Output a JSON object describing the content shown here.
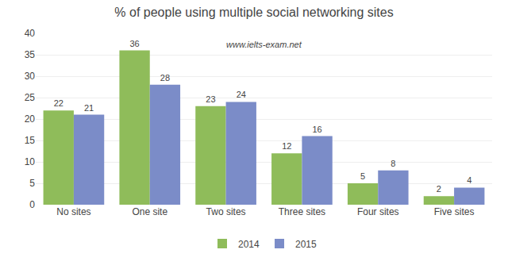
{
  "chart_data": {
    "type": "bar",
    "title": "% of people using multiple social networking sites",
    "annotations": [
      "www.ielts-exam.net"
    ],
    "categories": [
      "No sites",
      "One site",
      "Two sites",
      "Three sites",
      "Four sites",
      "Five sites"
    ],
    "series": [
      {
        "name": "2014",
        "color": "#8fbc5a",
        "values": [
          22,
          36,
          23,
          12,
          5,
          2
        ]
      },
      {
        "name": "2015",
        "color": "#7b8cc8",
        "values": [
          21,
          28,
          24,
          16,
          8,
          4
        ]
      }
    ],
    "ylim": [
      0,
      40
    ],
    "yticks": [
      0,
      5,
      10,
      15,
      20,
      25,
      30,
      35,
      40
    ],
    "grid": true,
    "legend": "bottom",
    "data_labels": true
  }
}
